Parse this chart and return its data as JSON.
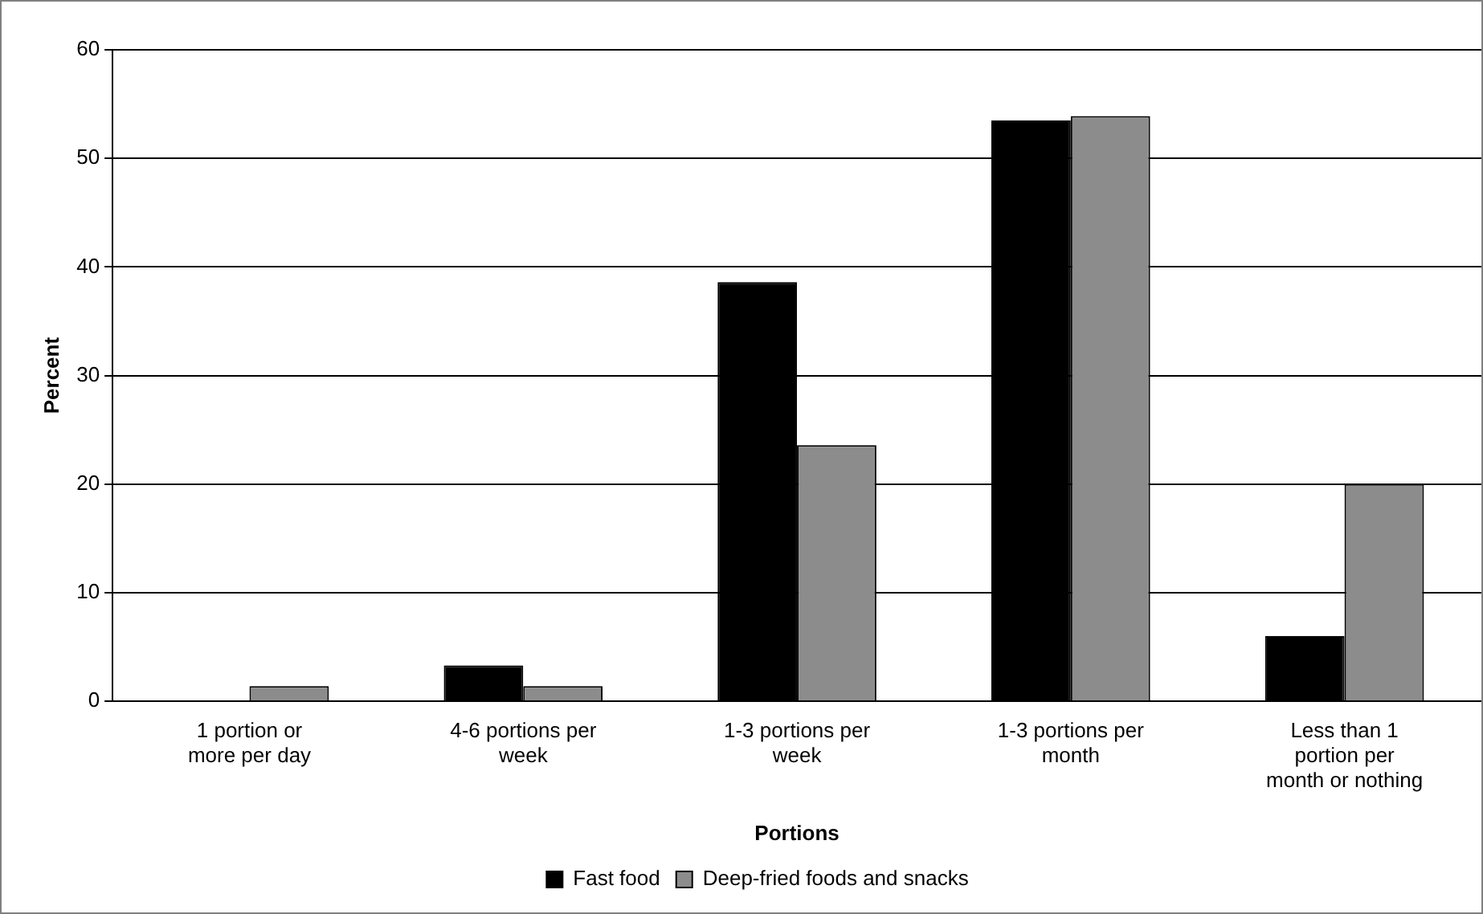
{
  "chart_data": {
    "type": "bar",
    "xlabel": "Portions",
    "ylabel": "Percent",
    "categories": [
      "1 portion or more per day",
      "4-6 portions per week",
      "1-3 portions per week",
      "1-3 portions per month",
      "Less than 1 portion per month or nothing"
    ],
    "series": [
      {
        "name": "Fast food",
        "color": "#000000",
        "values": [
          0,
          3.3,
          38.6,
          53.5,
          6
        ]
      },
      {
        "name": "Deep-fried foods and snacks",
        "color": "#8c8c8c",
        "values": [
          1.4,
          1.4,
          23.6,
          53.9,
          20
        ]
      }
    ],
    "ylim": [
      0,
      60
    ],
    "yticks": [
      0,
      10,
      20,
      30,
      40,
      50,
      60
    ],
    "grid": "y",
    "legend": "bottom"
  }
}
